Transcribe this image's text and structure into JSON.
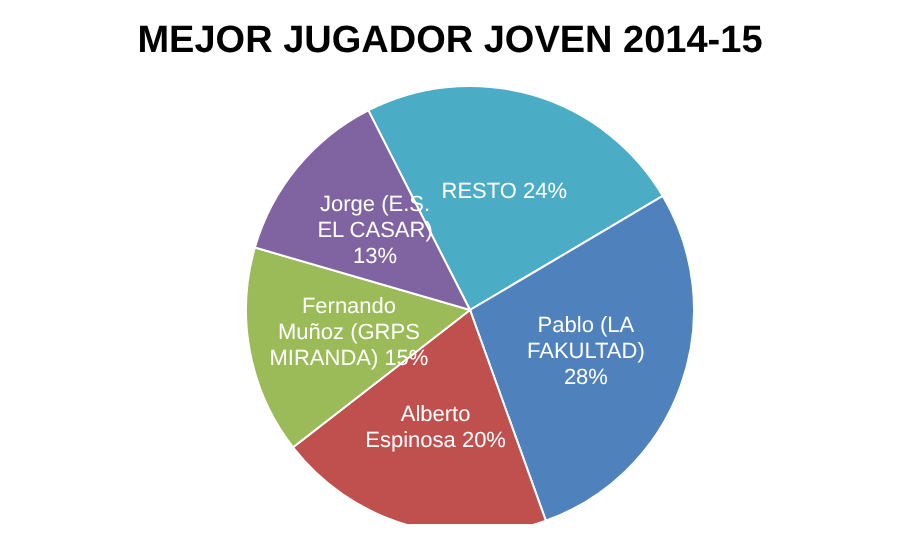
{
  "chart_data": {
    "type": "pie",
    "title": "MEJOR JUGADOR JOVEN 2014-15",
    "categories": [
      "RESTO",
      "Pablo (LA FAKULTAD)",
      "Alberto Espinosa",
      "Fernando Muñoz (GRPS MIRANDA)",
      "Jorge (E.S. EL CASAR)"
    ],
    "values": [
      24,
      28,
      20,
      15,
      13
    ],
    "colors": [
      "#4bacc6",
      "#4f81bd",
      "#c0504d",
      "#9bbb59",
      "#8064a2"
    ],
    "value_labels": [
      "24%",
      "28%",
      "20%",
      "15%",
      "13%"
    ],
    "legend": false
  }
}
